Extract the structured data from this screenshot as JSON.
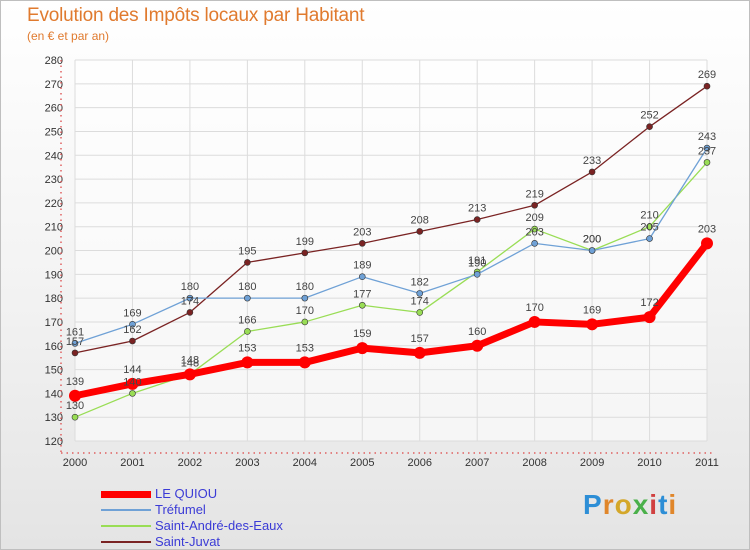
{
  "header": {
    "title": "Evolution des Impôts locaux par Habitant",
    "subtitle": "(en € et par an)"
  },
  "logo": {
    "text": "Proxiti",
    "colors": [
      "#2d8ed6",
      "#e0862a",
      "#d4a72a",
      "#4ab04a",
      "#d04040",
      "#2d8ed6",
      "#e0862a"
    ]
  },
  "chart_data": {
    "type": "line",
    "x": [
      "2000",
      "2001",
      "2002",
      "2003",
      "2004",
      "2005",
      "2006",
      "2007",
      "2008",
      "2009",
      "2010",
      "2011"
    ],
    "ylim": [
      120,
      280
    ],
    "yticks": [
      120,
      130,
      140,
      150,
      160,
      170,
      180,
      190,
      200,
      210,
      220,
      230,
      240,
      250,
      260,
      270,
      280
    ],
    "grid": true,
    "legend": "bottom-left",
    "series": [
      {
        "name": "LE QUIOU",
        "color": "#ff0000",
        "width": 7,
        "marker_r": 6,
        "values": [
          139,
          144,
          148,
          153,
          153,
          159,
          157,
          160,
          170,
          169,
          172,
          203
        ],
        "labels": [
          "139",
          "144",
          "148",
          "153",
          "153",
          "159",
          "157",
          "160",
          "170",
          "169",
          "172",
          "203"
        ]
      },
      {
        "name": "Tréfumel",
        "color": "#6fa1d6",
        "width": 1.3,
        "marker_r": 3,
        "values": [
          161,
          169,
          180,
          180,
          180,
          189,
          182,
          190,
          203,
          200,
          205,
          243
        ],
        "labels": [
          "161",
          "169",
          "180",
          "180",
          "180",
          "189",
          "182",
          "190",
          "203",
          "200",
          "205",
          "243"
        ]
      },
      {
        "name": "Saint-André-des-Eaux",
        "color": "#99dd55",
        "width": 1.3,
        "marker_r": 3,
        "values": [
          130,
          140,
          148,
          166,
          170,
          177,
          174,
          191,
          209,
          200,
          210,
          237
        ],
        "labels": [
          "130",
          "140",
          "148",
          "166",
          "170",
          "177",
          "174",
          "191",
          "209",
          "200",
          "210",
          "237"
        ]
      },
      {
        "name": "Saint-Juvat",
        "color": "#7a2323",
        "width": 1.3,
        "marker_r": 3,
        "values": [
          157,
          162,
          174,
          195,
          199,
          203,
          208,
          213,
          219,
          233,
          252,
          269
        ],
        "labels": [
          "157",
          "162",
          "174",
          "195",
          "199",
          "203",
          "208",
          "213",
          "219",
          "233",
          "252",
          "269"
        ]
      }
    ]
  }
}
